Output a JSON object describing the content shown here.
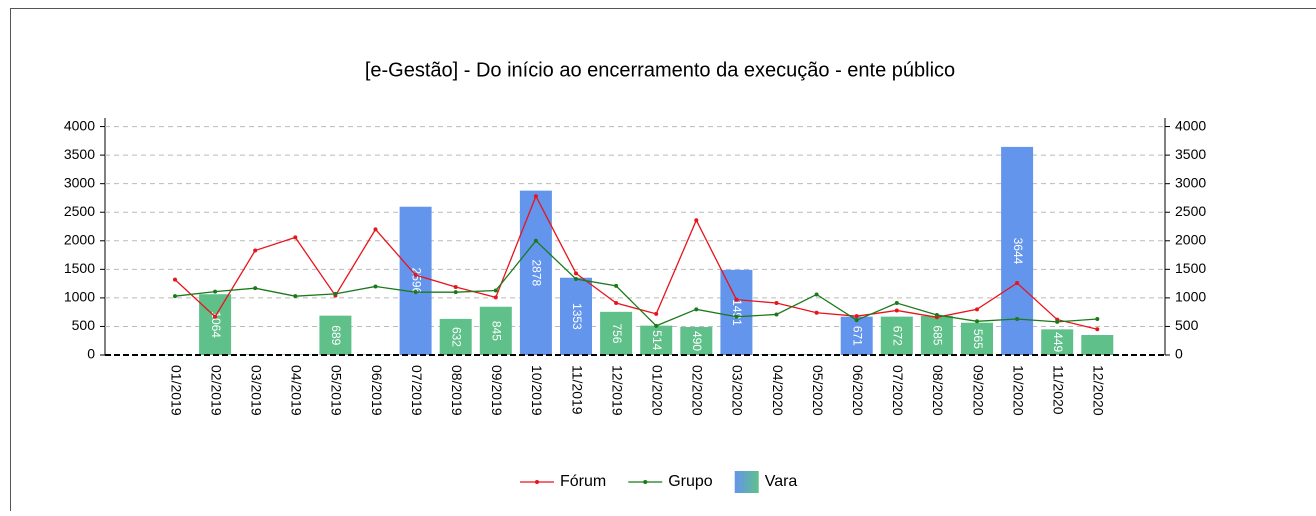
{
  "chart_data": {
    "type": "bar",
    "title": "[e-Gestão]  - Do início ao encerramento da execução - ente público",
    "categories": [
      "01/2019",
      "02/2019",
      "03/2019",
      "04/2019",
      "05/2019",
      "06/2019",
      "07/2019",
      "08/2019",
      "09/2019",
      "10/2019",
      "11/2019",
      "12/2019",
      "01/2020",
      "02/2020",
      "03/2020",
      "04/2020",
      "05/2020",
      "06/2020",
      "07/2020",
      "08/2020",
      "09/2020",
      "10/2020",
      "11/2020",
      "12/2020"
    ],
    "series": [
      {
        "name": "Fórum",
        "type": "line",
        "color": "#e8141c",
        "values": [
          1320,
          670,
          1830,
          2060,
          1040,
          2200,
          1400,
          1190,
          1010,
          2780,
          1430,
          910,
          720,
          2360,
          970,
          910,
          740,
          680,
          780,
          660,
          800,
          1260,
          620,
          450
        ]
      },
      {
        "name": "Grupo",
        "type": "line",
        "color": "#1a7a1a",
        "values": [
          1030,
          1110,
          1170,
          1030,
          1070,
          1200,
          1100,
          1100,
          1130,
          2000,
          1330,
          1210,
          510,
          800,
          670,
          710,
          1060,
          610,
          910,
          700,
          590,
          630,
          580,
          630
        ]
      },
      {
        "name": "Vara",
        "type": "bar",
        "colors": [
          "#5fc08a",
          "#5fc08a",
          "#5fc08a",
          "#5fc08a",
          "#5fc08a",
          "#5fc08a",
          "#6495ed",
          "#5fc08a",
          "#5fc08a",
          "#6495ed",
          "#6495ed",
          "#5fc08a",
          "#5fc08a",
          "#5fc08a",
          "#6495ed",
          "#5fc08a",
          "#5fc08a",
          "#6495ed",
          "#5fc08a",
          "#5fc08a",
          "#5fc08a",
          "#6495ed",
          "#5fc08a",
          "#5fc08a"
        ],
        "values": [
          10,
          1064,
          10,
          10,
          689,
          10,
          2596,
          632,
          845,
          2878,
          1353,
          756,
          514,
          490,
          1491,
          10,
          10,
          671,
          672,
          685,
          565,
          3644,
          449,
          350
        ],
        "value_labels": [
          null,
          "1064",
          null,
          null,
          "689",
          null,
          "2596",
          "632",
          "845",
          "2878",
          "1353",
          "756",
          "514",
          "490",
          "1491",
          null,
          null,
          "671",
          "672",
          "685",
          "565",
          "3644",
          "449",
          null
        ]
      }
    ],
    "ylim": [
      0,
      4150
    ],
    "yticks": [
      0,
      500,
      1000,
      1500,
      2000,
      2500,
      3000,
      3500,
      4000
    ],
    "y2lim": [
      0,
      4150
    ],
    "y2ticks": [
      0,
      500,
      1000,
      1500,
      2000,
      2500,
      3000,
      3500,
      4000
    ],
    "grid": true,
    "legend": "bottom"
  }
}
